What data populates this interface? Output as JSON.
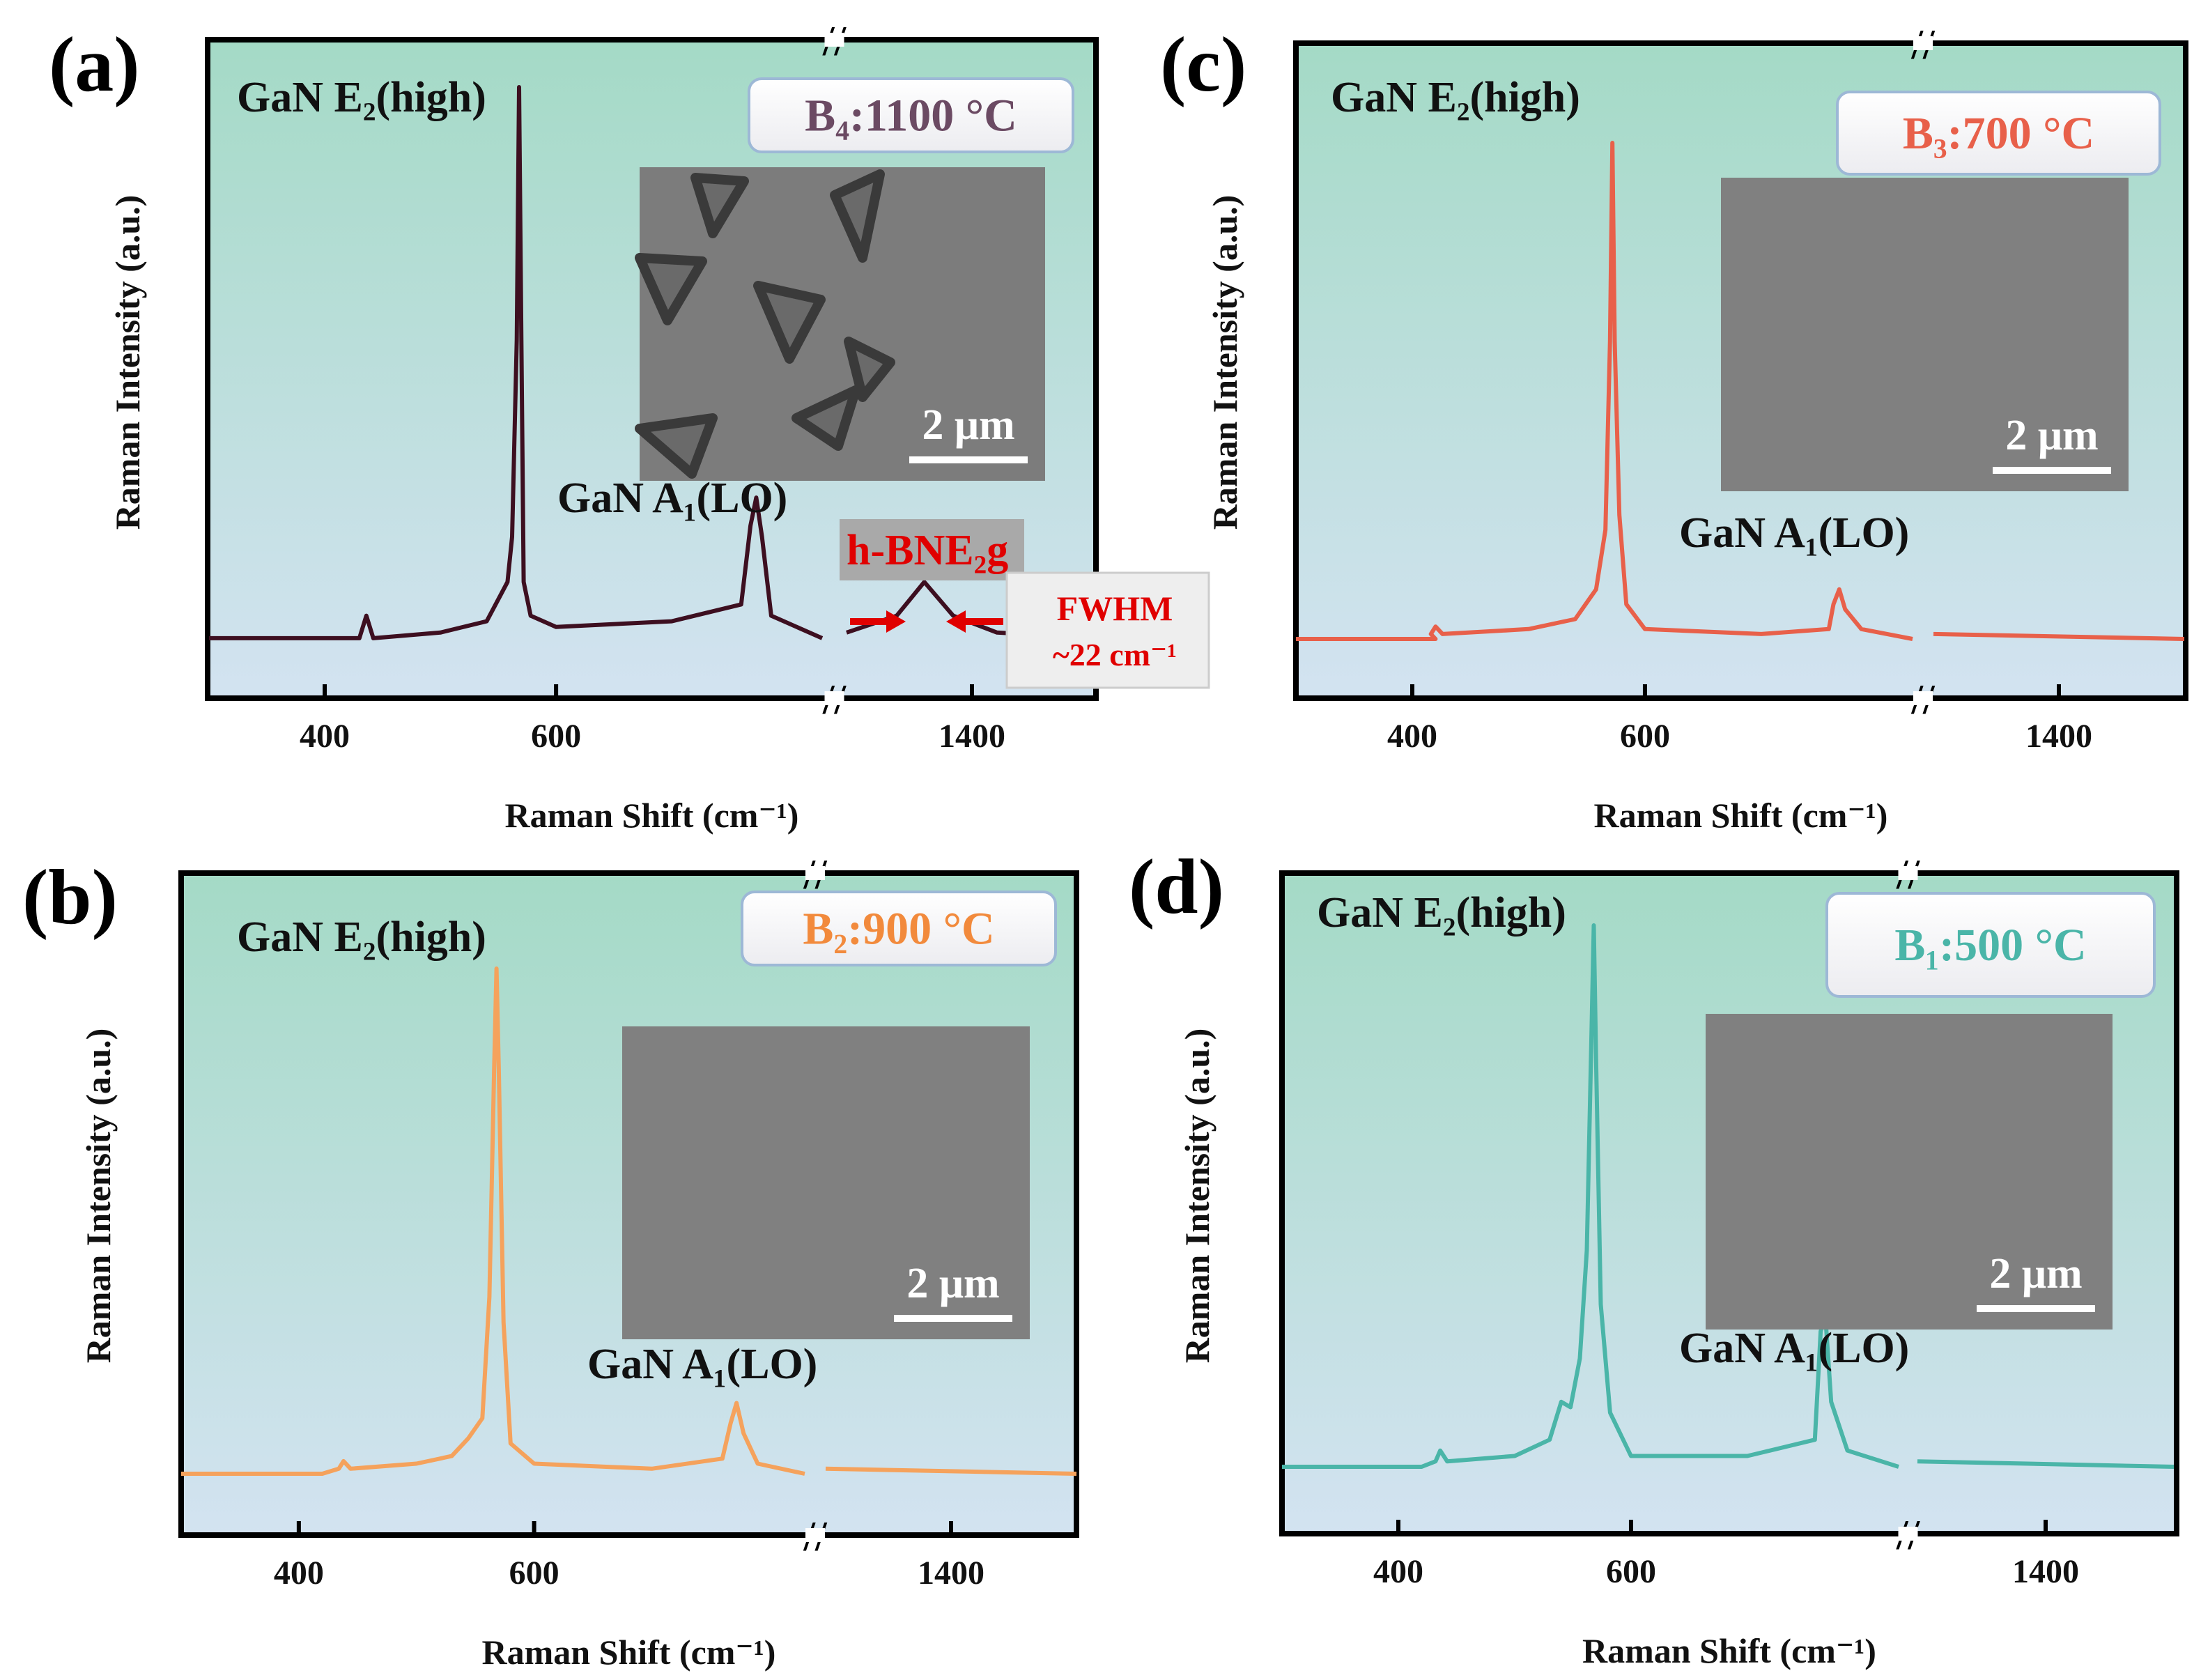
{
  "figure": {
    "common": {
      "xlabel": "Raman Shift (cm⁻¹)",
      "ylabel": "Raman Intensity (a.u.)",
      "peak_e2": "GaN E₂(high)",
      "peak_a1": "GaN A₁(LO)",
      "scale_bar": "2 μm",
      "axis_break": "//"
    },
    "panels": [
      {
        "id": "a",
        "panel_label": "(a)",
        "sample_label": "B₄:1100 °C",
        "sample_color": "#6b4a63",
        "line_color": "#3d0f20",
        "sem": "triangles",
        "hbn_label": "h-BNE₂g",
        "fwhm_label": "FWHM",
        "fwhm_value": "~22 cm⁻¹"
      },
      {
        "id": "b",
        "panel_label": "(b)",
        "sample_label": "B₂:900 °C",
        "sample_color": "#f28a3c",
        "line_color": "#f5a25c",
        "sem": "flat"
      },
      {
        "id": "c",
        "panel_label": "(c)",
        "sample_label": "B₃:700 °C",
        "sample_color": "#e8604a",
        "line_color": "#e8604a",
        "sem": "flat"
      },
      {
        "id": "d",
        "panel_label": "(d)",
        "sample_label": "B₁:500 °C",
        "sample_color": "#4ab5a8",
        "line_color": "#4ab5a8",
        "sem": "flat"
      }
    ]
  },
  "chart_data": [
    {
      "type": "line",
      "panel": "a",
      "title": "B₄:1100 °C",
      "xlabel": "Raman Shift (cm⁻¹)",
      "ylabel": "Raman Intensity (a.u.)",
      "xticks": [
        400,
        600,
        1400
      ],
      "xlim_segments": [
        [
          300,
          830
        ],
        [
          1300,
          1500
        ]
      ],
      "x": [
        300,
        430,
        436,
        442,
        500,
        540,
        558,
        562,
        566,
        568,
        570,
        572,
        578,
        600,
        700,
        760,
        768,
        773,
        778,
        786,
        830,
        1300,
        1340,
        1362,
        1385,
        1420,
        1500
      ],
      "y": [
        0.02,
        0.02,
        0.06,
        0.02,
        0.03,
        0.05,
        0.12,
        0.2,
        0.55,
        1.0,
        0.55,
        0.12,
        0.06,
        0.04,
        0.05,
        0.08,
        0.22,
        0.27,
        0.2,
        0.06,
        0.02,
        0.03,
        0.06,
        0.12,
        0.06,
        0.03,
        0.02
      ],
      "annotations": [
        "GaN E₂(high)",
        "GaN A₁(LO)",
        "h-BNE₂g",
        "FWHM ~22 cm⁻¹"
      ]
    },
    {
      "type": "line",
      "panel": "b",
      "title": "B₂:900 °C",
      "xlabel": "Raman Shift (cm⁻¹)",
      "ylabel": "Raman Intensity (a.u.)",
      "xticks": [
        400,
        600,
        1400
      ],
      "xlim_segments": [
        [
          300,
          830
        ],
        [
          1300,
          1500
        ]
      ],
      "x": [
        300,
        420,
        434,
        438,
        444,
        500,
        530,
        544,
        556,
        562,
        566,
        568,
        570,
        574,
        580,
        600,
        700,
        760,
        767,
        772,
        778,
        790,
        830,
        1300,
        1500
      ],
      "y": [
        0.0,
        0.0,
        0.01,
        0.025,
        0.01,
        0.02,
        0.035,
        0.07,
        0.11,
        0.35,
        0.8,
        1.0,
        0.8,
        0.3,
        0.06,
        0.02,
        0.01,
        0.03,
        0.1,
        0.14,
        0.08,
        0.02,
        0.0,
        0.01,
        0.0
      ],
      "annotations": [
        "GaN E₂(high)",
        "GaN A₁(LO)"
      ]
    },
    {
      "type": "line",
      "panel": "c",
      "title": "B₃:700 °C",
      "xlabel": "Raman Shift (cm⁻¹)",
      "ylabel": "Raman Intensity (a.u.)",
      "xticks": [
        400,
        600,
        1400
      ],
      "xlim_segments": [
        [
          300,
          830
        ],
        [
          1300,
          1500
        ]
      ],
      "x": [
        300,
        420,
        416,
        420,
        426,
        500,
        540,
        552,
        558,
        566,
        570,
        572,
        574,
        578,
        584,
        600,
        700,
        758,
        762,
        767,
        772,
        786,
        830,
        1300,
        1500
      ],
      "y": [
        0.0,
        0.0,
        0.01,
        0.025,
        0.01,
        0.02,
        0.04,
        0.08,
        0.1,
        0.22,
        0.6,
        1.0,
        0.6,
        0.25,
        0.07,
        0.02,
        0.01,
        0.02,
        0.07,
        0.1,
        0.06,
        0.02,
        0.0,
        0.01,
        0.0
      ],
      "annotations": [
        "GaN E₂(high)",
        "GaN A₁(LO)"
      ]
    },
    {
      "type": "line",
      "panel": "d",
      "title": "B₁:500 °C",
      "xlabel": "Raman Shift (cm⁻¹)",
      "ylabel": "Raman Intensity (a.u.)",
      "xticks": [
        400,
        600,
        1400
      ],
      "xlim_segments": [
        [
          300,
          830
        ],
        [
          1300,
          1500
        ]
      ],
      "x": [
        300,
        420,
        432,
        436,
        442,
        500,
        530,
        540,
        548,
        556,
        562,
        566,
        568,
        570,
        574,
        582,
        600,
        700,
        758,
        763,
        767,
        772,
        786,
        830,
        1300,
        1500
      ],
      "y": [
        0.0,
        0.0,
        0.01,
        0.03,
        0.01,
        0.02,
        0.05,
        0.12,
        0.11,
        0.2,
        0.4,
        0.8,
        1.0,
        0.75,
        0.3,
        0.1,
        0.02,
        0.02,
        0.05,
        0.25,
        0.28,
        0.12,
        0.03,
        0.0,
        0.01,
        0.0
      ],
      "annotations": [
        "GaN E₂(high)",
        "GaN A₁(LO)"
      ]
    }
  ]
}
